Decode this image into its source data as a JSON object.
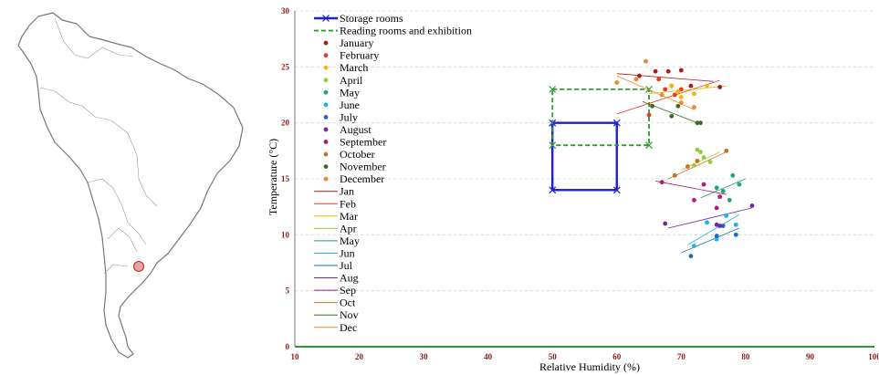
{
  "colors": {
    "storage": "#1f1fd6",
    "reading": "#2a9a2a",
    "axis_text": "#8b1a1a",
    "grid": "#d4d4d4",
    "map_outline": "#777777",
    "map_marker": "#d04040"
  },
  "map_icon": "south-america-map",
  "chart_data": {
    "type": "scatter",
    "title": "",
    "xlabel": "Relative Humidity (%)",
    "ylabel": "Temperature (°C)",
    "xlim": [
      10,
      100
    ],
    "ylim": [
      0,
      30
    ],
    "xticks": [
      10,
      20,
      30,
      40,
      50,
      60,
      70,
      80,
      90,
      100
    ],
    "yticks": [
      0,
      5,
      10,
      15,
      20,
      25,
      30
    ],
    "grid": "horizontal dashed",
    "legend_position": "top-left",
    "regions": [
      {
        "name": "Storage rooms",
        "x": [
          50,
          60
        ],
        "y": [
          14,
          20
        ],
        "color": "#1f1fd6",
        "style": "solid"
      },
      {
        "name": "Reading rooms and exhibition",
        "x": [
          50,
          65
        ],
        "y": [
          18,
          23
        ],
        "color": "#2a9a2a",
        "style": "dashed"
      }
    ],
    "months": [
      {
        "name": "January",
        "trend_name": "Jan",
        "color": "#b01818",
        "points": [
          [
            63.5,
            24.2
          ],
          [
            66,
            24.6
          ],
          [
            68,
            24.6
          ],
          [
            70,
            24.7
          ],
          [
            71.5,
            23.3
          ],
          [
            76,
            23.2
          ]
        ],
        "trend": [
          [
            60,
            24.4
          ],
          [
            75,
            23.7
          ]
        ]
      },
      {
        "name": "February",
        "trend_name": "Feb",
        "color": "#e83a1c",
        "points": [
          [
            65,
            20.7
          ],
          [
            66.5,
            23.9
          ],
          [
            67.5,
            23
          ],
          [
            68.5,
            23.3
          ],
          [
            69,
            22.5
          ],
          [
            70,
            23
          ]
        ],
        "trend": [
          [
            60,
            20.8
          ],
          [
            76,
            23.8
          ]
        ]
      },
      {
        "name": "March",
        "trend_name": "Mar",
        "color": "#f2b800",
        "points": [
          [
            68.5,
            23.3
          ],
          [
            69.5,
            22.8
          ],
          [
            70,
            22.3
          ],
          [
            72,
            22.6
          ],
          [
            74,
            23.3
          ]
        ],
        "trend": [
          [
            65,
            22.6
          ],
          [
            77,
            23.3
          ]
        ]
      },
      {
        "name": "April",
        "trend_name": "Apr",
        "color": "#90cc38",
        "points": [
          [
            72.5,
            17.6
          ],
          [
            73,
            17.4
          ],
          [
            73.5,
            16.9
          ],
          [
            74.5,
            16.5
          ],
          [
            72,
            16.2
          ]
        ],
        "trend": [
          [
            70,
            15.8
          ],
          [
            76,
            17.4
          ]
        ]
      },
      {
        "name": "May",
        "trend_name": "May",
        "color": "#1aa86e",
        "points": [
          [
            75.5,
            14.2
          ],
          [
            76.5,
            13.9
          ],
          [
            77.5,
            13.1
          ],
          [
            78,
            15.3
          ],
          [
            79,
            14.5
          ]
        ],
        "trend": [
          [
            73,
            13.3
          ],
          [
            80,
            15.0
          ]
        ]
      },
      {
        "name": "June",
        "trend_name": "Jun",
        "color": "#18b4e8",
        "points": [
          [
            72,
            9.0
          ],
          [
            74,
            11.1
          ],
          [
            75.5,
            9.6
          ],
          [
            77,
            11.7
          ],
          [
            78.5,
            10.9
          ]
        ],
        "trend": [
          [
            71,
            9.1
          ],
          [
            79,
            11.8
          ]
        ]
      },
      {
        "name": "July",
        "trend_name": "Jul",
        "color": "#1a6bc4",
        "points": [
          [
            71.5,
            8.1
          ],
          [
            75.5,
            9.9
          ],
          [
            76.5,
            10.8
          ],
          [
            78.5,
            10.0
          ]
        ],
        "trend": [
          [
            70,
            8.4
          ],
          [
            79,
            10.6
          ]
        ]
      },
      {
        "name": "August",
        "trend_name": "Aug",
        "color": "#6a2ca0",
        "points": [
          [
            67.5,
            11.0
          ],
          [
            75.5,
            10.9
          ],
          [
            76,
            10.8
          ],
          [
            81,
            12.6
          ]
        ],
        "trend": [
          [
            68,
            10.6
          ],
          [
            81,
            12.4
          ]
        ]
      },
      {
        "name": "September",
        "trend_name": "Sep",
        "color": "#b0187a",
        "points": [
          [
            67,
            14.7
          ],
          [
            72,
            13.1
          ],
          [
            73.5,
            14.5
          ],
          [
            75.5,
            12.4
          ],
          [
            76,
            13.4
          ]
        ],
        "trend": [
          [
            66,
            14.8
          ],
          [
            77,
            13.6
          ]
        ]
      },
      {
        "name": "October",
        "trend_name": "Oct",
        "color": "#c87020",
        "points": [
          [
            69,
            15.3
          ],
          [
            71,
            16.1
          ],
          [
            72.5,
            16.6
          ],
          [
            77,
            17.5
          ]
        ],
        "trend": [
          [
            68,
            15.0
          ],
          [
            77,
            17.4
          ]
        ]
      },
      {
        "name": "November",
        "trend_name": "Nov",
        "color": "#3a6b1e",
        "points": [
          [
            65.5,
            21.5
          ],
          [
            68.5,
            20.6
          ],
          [
            69.5,
            21.5
          ],
          [
            72.5,
            20
          ],
          [
            73,
            20
          ]
        ],
        "trend": [
          [
            64,
            21.9
          ],
          [
            73,
            19.9
          ]
        ]
      },
      {
        "name": "December",
        "trend_name": "Dec",
        "color": "#e88a30",
        "points": [
          [
            60,
            23.6
          ],
          [
            63,
            23.9
          ],
          [
            64.5,
            25.5
          ],
          [
            67,
            22.5
          ],
          [
            70,
            21.8
          ],
          [
            72,
            21.4
          ]
        ],
        "trend": [
          [
            60,
            24.2
          ],
          [
            72,
            21.2
          ]
        ]
      }
    ]
  }
}
